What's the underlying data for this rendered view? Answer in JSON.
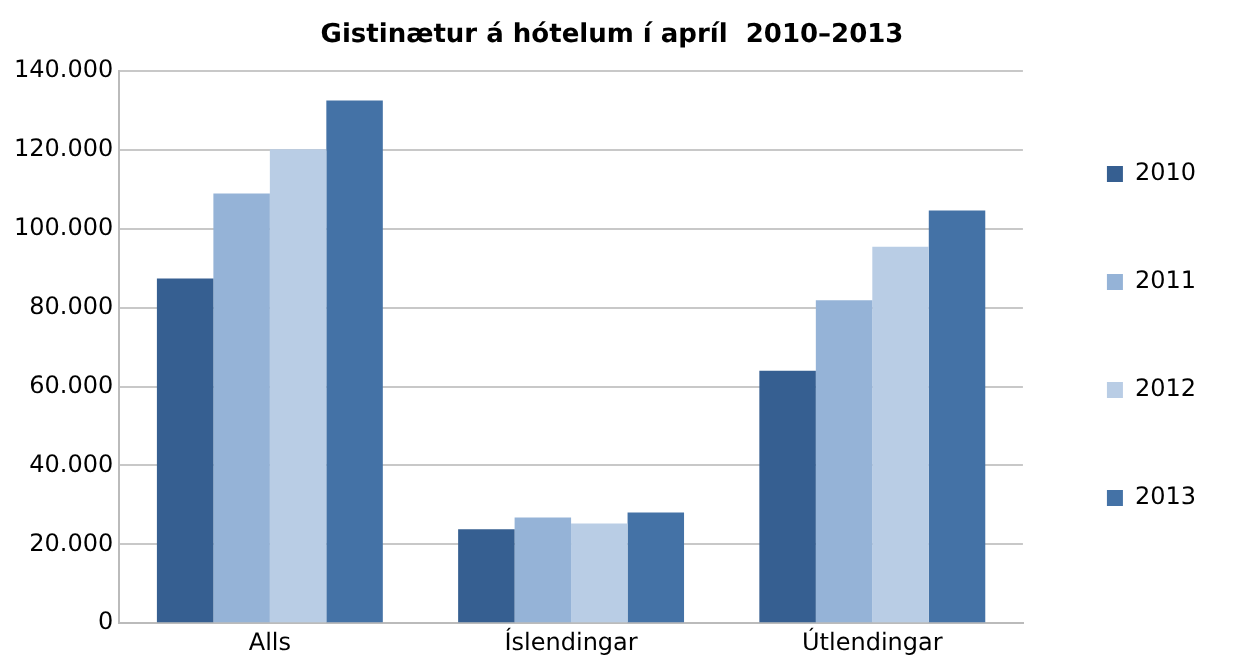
{
  "chart_data": {
    "type": "bar",
    "title": "Gistinætur á hótelum í apríl  2010–2013",
    "categories": [
      "Alls",
      "Íslendingar",
      "Útlendingar"
    ],
    "series": [
      {
        "name": "2010",
        "color": "#365f91",
        "values": [
          87400,
          23800,
          64000
        ]
      },
      {
        "name": "2011",
        "color": "#95b3d7",
        "values": [
          109000,
          26800,
          81900
        ]
      },
      {
        "name": "2012",
        "color": "#b9cde5",
        "values": [
          120200,
          25300,
          95500
        ]
      },
      {
        "name": "2013",
        "color": "#4472a6",
        "values": [
          132600,
          28100,
          104700
        ]
      }
    ],
    "ylim": [
      0,
      140000
    ],
    "yticks": [
      0,
      {
        "value": 20000,
        "label": "20.000"
      },
      {
        "value": 40000,
        "label": "40.000"
      },
      {
        "value": 60000,
        "label": "60.000"
      },
      {
        "value": 80000,
        "label": "80.000"
      },
      {
        "value": 100000,
        "label": "100.000"
      },
      {
        "value": 120000,
        "label": "120.000"
      },
      {
        "value": 140000,
        "label": "140.000"
      }
    ],
    "grid": "y",
    "legend": "right"
  }
}
